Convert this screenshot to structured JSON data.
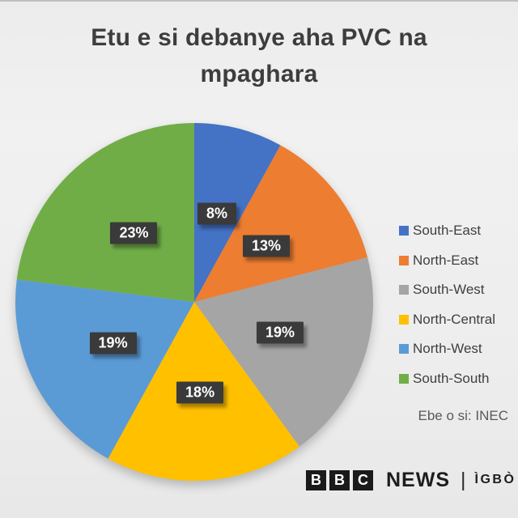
{
  "title": "Etu e si debanye aha PVC na mpaghara",
  "chart_data": {
    "type": "pie",
    "title": "Etu e si debanye aha PVC na mpaghara",
    "unit": "%",
    "start_angle_deg": 0,
    "direction": "clockwise",
    "legend_position": "right",
    "slices": [
      {
        "label": "South-East",
        "value": 8,
        "color": "#4472C4"
      },
      {
        "label": "North-East",
        "value": 13,
        "color": "#ED7D31"
      },
      {
        "label": "South-West",
        "value": 19,
        "color": "#A5A5A5"
      },
      {
        "label": "North-Central",
        "value": 18,
        "color": "#FFC000"
      },
      {
        "label": "North-West",
        "value": 19,
        "color": "#5B9BD5"
      },
      {
        "label": "South-South",
        "value": 23,
        "color": "#70AD47"
      }
    ],
    "data_labels": [
      "8%",
      "13%",
      "19%",
      "18%",
      "19%",
      "23%"
    ],
    "data_label_style": {
      "bg": "#3A3A3A",
      "text_color": "#FFFFFF"
    }
  },
  "source": "Ebe o si: INEC",
  "footer": {
    "bbc_blocks": [
      "B",
      "B",
      "C"
    ],
    "news": "NEWS",
    "separator": "|",
    "service": "ÌGBÒ"
  }
}
